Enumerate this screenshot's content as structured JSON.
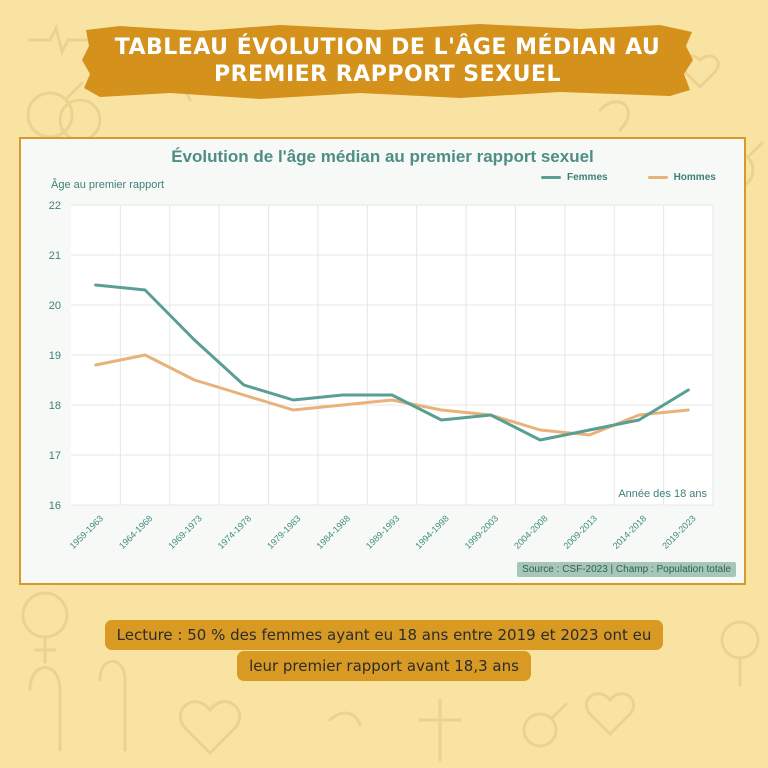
{
  "header": {
    "title_line1": "Tableau évolution de l'âge médian au",
    "title_line2": "premier rapport sexuel"
  },
  "colors": {
    "background": "#f9e3a3",
    "banner": "#d4911b",
    "femmes": "#5a9e94",
    "hommes": "#e9b27a",
    "card_border": "#d59a2a"
  },
  "chart_data": {
    "type": "line",
    "title": "Évolution de l'âge médian au premier rapport sexuel",
    "xlabel": "Année des 18 ans",
    "ylabel": "Âge au premier rapport",
    "ylim": [
      16,
      22
    ],
    "yticks": [
      16,
      17,
      18,
      19,
      20,
      21,
      22
    ],
    "grid": true,
    "legend_position": "top-right",
    "categories": [
      "1959-1963",
      "1964-1968",
      "1969-1973",
      "1974-1978",
      "1979-1983",
      "1984-1988",
      "1989-1993",
      "1994-1998",
      "1999-2003",
      "2004-2008",
      "2009-2013",
      "2014-2018",
      "2019-2023"
    ],
    "series": [
      {
        "name": "Femmes",
        "values": [
          20.4,
          20.3,
          19.3,
          18.4,
          18.1,
          18.2,
          18.2,
          17.7,
          17.8,
          17.3,
          17.5,
          17.7,
          18.3
        ]
      },
      {
        "name": "Hommes",
        "values": [
          18.8,
          19.0,
          18.5,
          18.2,
          17.9,
          18.0,
          18.1,
          17.9,
          17.8,
          17.5,
          17.4,
          17.8,
          17.9
        ]
      }
    ],
    "source": "Source : CSF-2023 | Champ : Population totale"
  },
  "lecture": {
    "line1": "Lecture : 50 % des femmes ayant eu 18 ans entre 2019 et 2023 ont eu",
    "line2": "leur premier rapport avant 18,3 ans"
  }
}
